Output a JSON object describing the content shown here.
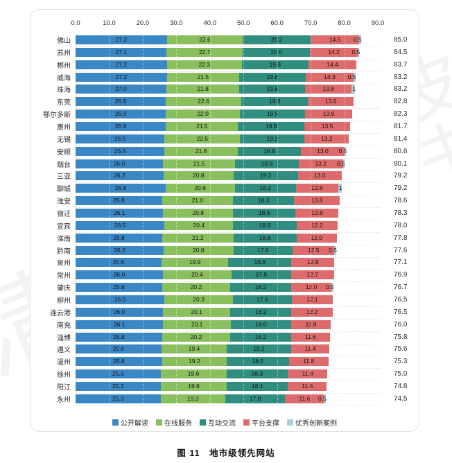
{
  "figure": {
    "caption": "图 11　地市级领先网站"
  },
  "watermarks": {
    "left_glyph": "清",
    "right_glyph": "皮书"
  },
  "chart_data": {
    "type": "bar",
    "stacked": true,
    "orientation": "horizontal",
    "title": "",
    "xlabel": "",
    "ylabel": "",
    "xlim": [
      0,
      90
    ],
    "x_ticks": [
      "0.0",
      "10.0",
      "20.0",
      "30.0",
      "40.0",
      "50.0",
      "60.0",
      "70.0",
      "80.0",
      "90.0"
    ],
    "grid": "dashed-vertical-over-bars",
    "legend_position": "bottom",
    "series_names": [
      "公开解读",
      "在线服务",
      "互动交流",
      "平台支撑",
      "优秀创新案例"
    ],
    "series_colors": [
      "#3a87c6",
      "#8abf5e",
      "#2f8e80",
      "#dd6b6c",
      "#a9cdd8"
    ],
    "rows": [
      {
        "city": "佛山",
        "values": [
          "27.2",
          "22.6",
          "20.2",
          "14.5",
          "0.5"
        ],
        "total": "85.0"
      },
      {
        "city": "苏州",
        "values": [
          "27.1",
          "22.7",
          "20.0",
          "14.2",
          "0.5"
        ],
        "total": "84.5"
      },
      {
        "city": "郴州",
        "values": [
          "27.2",
          "22.3",
          "19.8",
          "14.4"
        ],
        "total": "83.7"
      },
      {
        "city": "威海",
        "values": [
          "27.2",
          "21.5",
          "19.8",
          "14.3",
          "0.5"
        ],
        "total": "83.2"
      },
      {
        "city": "珠海",
        "values": [
          "27.0",
          "21.8",
          "19.6",
          "13.8",
          "1"
        ],
        "total": "83.2"
      },
      {
        "city": "东莞",
        "values": [
          "26.8",
          "22.6",
          "19.8",
          "13.6"
        ],
        "total": "82.8"
      },
      {
        "city": "鄂尔多斯",
        "values": [
          "26.9",
          "22.0",
          "19.5",
          "13.9"
        ],
        "total": "82.3"
      },
      {
        "city": "惠州",
        "values": [
          "26.9",
          "21.5",
          "19.8",
          "13.5"
        ],
        "total": "81.7"
      },
      {
        "city": "无锡",
        "values": [
          "26.5",
          "22.5",
          "19.2",
          "13.2"
        ],
        "total": "81.4"
      },
      {
        "city": "安顺",
        "values": [
          "26.5",
          "21.8",
          "18.8",
          "13.0",
          "0.5"
        ],
        "total": "80.6"
      },
      {
        "city": "烟台",
        "values": [
          "26.0",
          "21.5",
          "18.9",
          "13.2",
          "0.5"
        ],
        "total": "80.1"
      },
      {
        "city": "三亚",
        "values": [
          "26.2",
          "20.8",
          "19.2",
          "13.0"
        ],
        "total": "79.2"
      },
      {
        "city": "聊城",
        "values": [
          "26.8",
          "20.6",
          "18.2",
          "12.6",
          "1"
        ],
        "total": "79.2"
      },
      {
        "city": "淮安",
        "values": [
          "25.8",
          "21.0",
          "18.3",
          "13.6"
        ],
        "total": "78.6"
      },
      {
        "city": "宿迁",
        "values": [
          "26.1",
          "20.8",
          "18.6",
          "12.8"
        ],
        "total": "78.3"
      },
      {
        "city": "宜宾",
        "values": [
          "26.5",
          "20.4",
          "18.9",
          "12.2"
        ],
        "total": "78.0"
      },
      {
        "city": "淮南",
        "values": [
          "25.8",
          "21.2",
          "18.8",
          "12.0"
        ],
        "total": "77.8"
      },
      {
        "city": "黔南",
        "values": [
          "26.2",
          "20.8",
          "17.6",
          "12.5",
          "0.5"
        ],
        "total": "77.6"
      },
      {
        "city": "泉州",
        "values": [
          "25.6",
          "19.9",
          "18.8",
          "12.8"
        ],
        "total": "77.1"
      },
      {
        "city": "常州",
        "values": [
          "26.0",
          "20.4",
          "17.8",
          "12.7"
        ],
        "total": "76.9"
      },
      {
        "city": "肇庆",
        "values": [
          "25.8",
          "20.2",
          "18.2",
          "12.0",
          "0.5"
        ],
        "total": "76.7"
      },
      {
        "city": "柳州",
        "values": [
          "26.5",
          "20.3",
          "17.6",
          "12.1"
        ],
        "total": "76.5"
      },
      {
        "city": "连云港",
        "values": [
          "26.0",
          "20.1",
          "18.2",
          "12.2"
        ],
        "total": "76.5"
      },
      {
        "city": "南充",
        "values": [
          "26.1",
          "20.1",
          "18.0",
          "11.8"
        ],
        "total": "76.0"
      },
      {
        "city": "淄博",
        "values": [
          "25.8",
          "20.2",
          "18.2",
          "11.6"
        ],
        "total": "75.8"
      },
      {
        "city": "遵义",
        "values": [
          "25.6",
          "19.4",
          "19.2",
          "11.4"
        ],
        "total": "75.6"
      },
      {
        "city": "温州",
        "values": [
          "25.8",
          "19.2",
          "18.5",
          "11.8"
        ],
        "total": "75.3"
      },
      {
        "city": "徐州",
        "values": [
          "25.3",
          "19.6",
          "18.3",
          "11.8"
        ],
        "total": "75.0"
      },
      {
        "city": "阳江",
        "values": [
          "25.3",
          "19.8",
          "18.1",
          "11.6"
        ],
        "total": "74.8"
      },
      {
        "city": "永州",
        "values": [
          "25.3",
          "19.3",
          "17.8",
          "11.6",
          "0.5"
        ],
        "total": "74.5"
      }
    ]
  }
}
